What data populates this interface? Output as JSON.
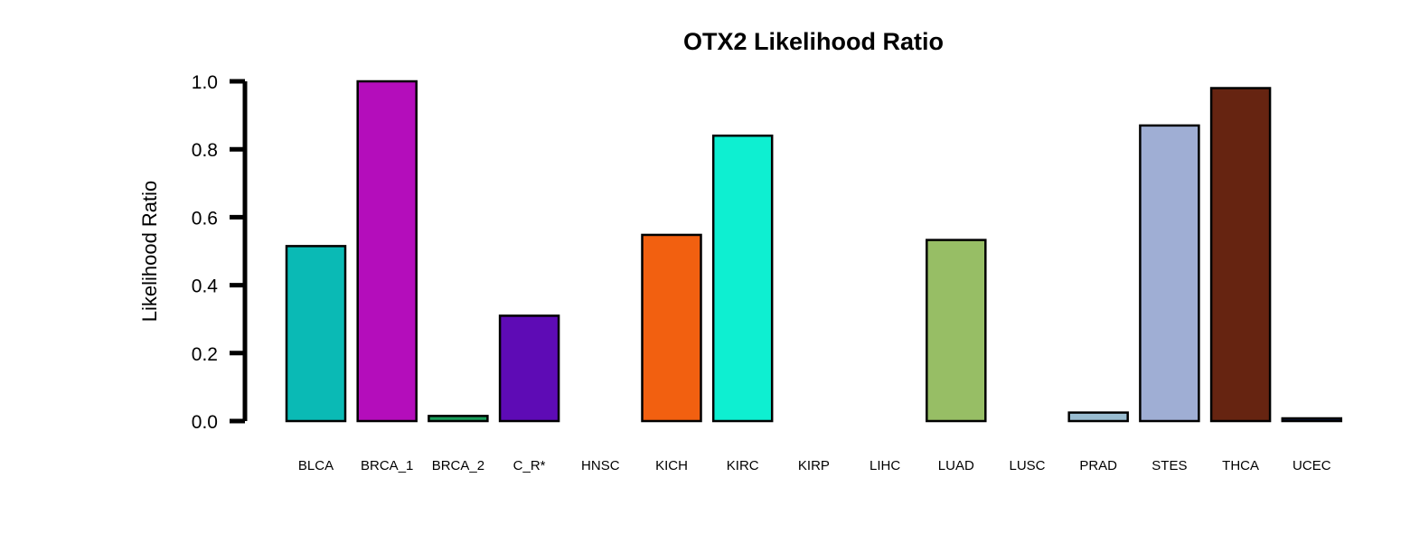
{
  "chart_data": {
    "type": "bar",
    "title": "OTX2 Likelihood Ratio",
    "xlabel": "",
    "ylabel": "Likelihood Ratio",
    "ylim": [
      0,
      1.0
    ],
    "yticks": [
      "0.0",
      "0.2",
      "0.4",
      "0.6",
      "0.8",
      "1.0"
    ],
    "grid": false,
    "categories": [
      "BLCA",
      "BRCA_1",
      "BRCA_2",
      "C_R*",
      "HNSC",
      "KICH",
      "KIRC",
      "KIRP",
      "LIHC",
      "LUAD",
      "LUSC",
      "PRAD",
      "STES",
      "THCA",
      "UCEC"
    ],
    "values": [
      0.515,
      1.0,
      0.015,
      0.31,
      0.0,
      0.548,
      0.84,
      0.0,
      0.0,
      0.533,
      0.0,
      0.025,
      0.87,
      0.98,
      0.008
    ],
    "colors": [
      "#0ABAB5",
      "#B40DBB",
      "#1A9E5B",
      "#5E0BB5",
      "#2B2B2B",
      "#F26010",
      "#0EEFD1",
      "#6B2F14",
      "#5A3A1F",
      "#97BE65",
      "#0B0B0B",
      "#99BCD0",
      "#9FAED4",
      "#662411",
      "#0E1E4E"
    ]
  }
}
